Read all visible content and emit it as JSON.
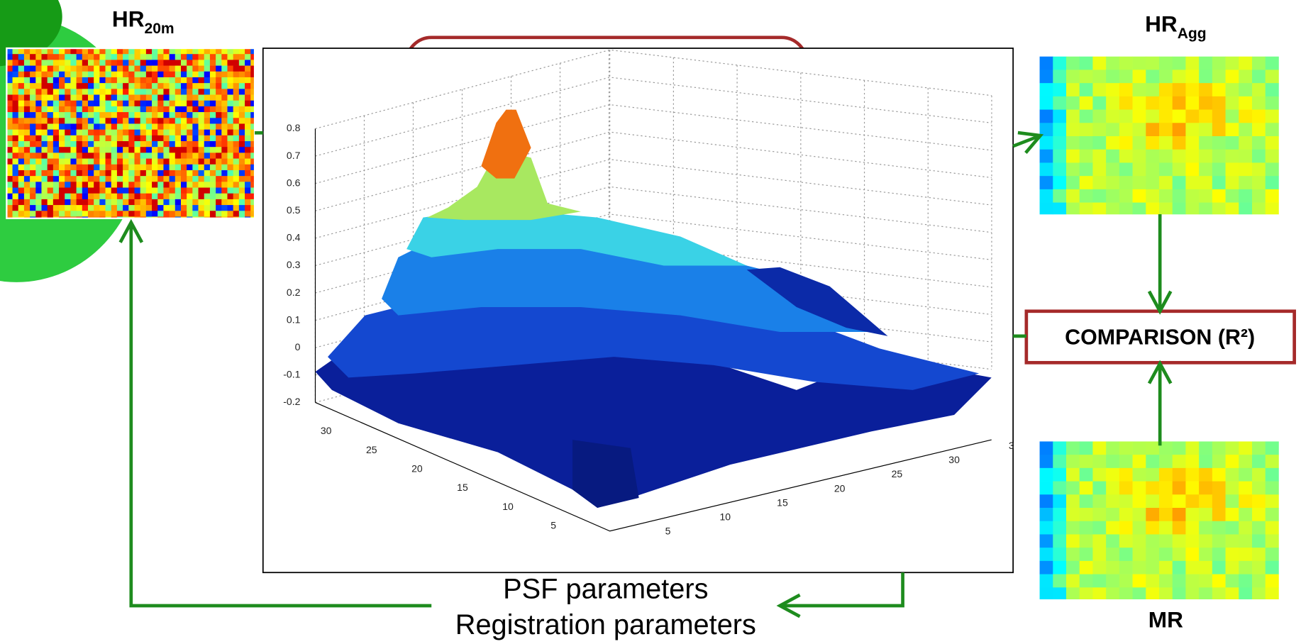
{
  "hr20m": {
    "label": "HR",
    "subscript": "20m"
  },
  "hragg": {
    "label": "HR",
    "subscript": "Agg"
  },
  "comparison": "COMPARISON (R²)",
  "mr": "MR",
  "feedback": [
    "PSF parameters",
    "Registration parameters"
  ],
  "plot": {
    "zticks": [
      0.8,
      0.7,
      0.6,
      0.5,
      0.4,
      0.3,
      0.2,
      0.1,
      0,
      -0.1,
      -0.2
    ],
    "xticks": [
      30,
      25,
      20,
      15,
      10,
      5
    ],
    "yticks": [
      5,
      10,
      15,
      20,
      25,
      30,
      3
    ]
  }
}
